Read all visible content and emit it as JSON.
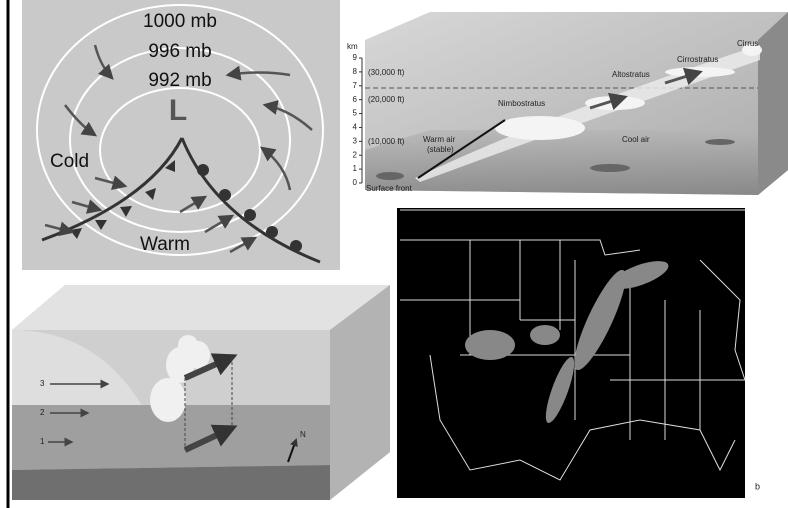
{
  "low_pressure_panel": {
    "isobars": [
      "1000 mb",
      "996 mb",
      "992 mb"
    ],
    "center": "L",
    "cold_label": "Cold",
    "warm_label": "Warm"
  },
  "warm_front_panel": {
    "axis_unit": "km",
    "axis_ticks": [
      0,
      1,
      2,
      3,
      4,
      5,
      6,
      7,
      8,
      9
    ],
    "altitude_labels": [
      "(30,000 ft)",
      "(20,000 ft)",
      "(10,000 ft)"
    ],
    "clouds": [
      "Cirrus",
      "Cirrostratus",
      "Altostratus",
      "Nimbostratus"
    ],
    "warm_air": [
      "Warm air",
      "(stable)"
    ],
    "cool_air": "Cool air",
    "surface_front": "Surface front"
  },
  "block_panel": {
    "levels": [
      "3",
      "2",
      "1"
    ],
    "north": "N"
  },
  "radar_panel": {
    "corner_label": "b"
  }
}
